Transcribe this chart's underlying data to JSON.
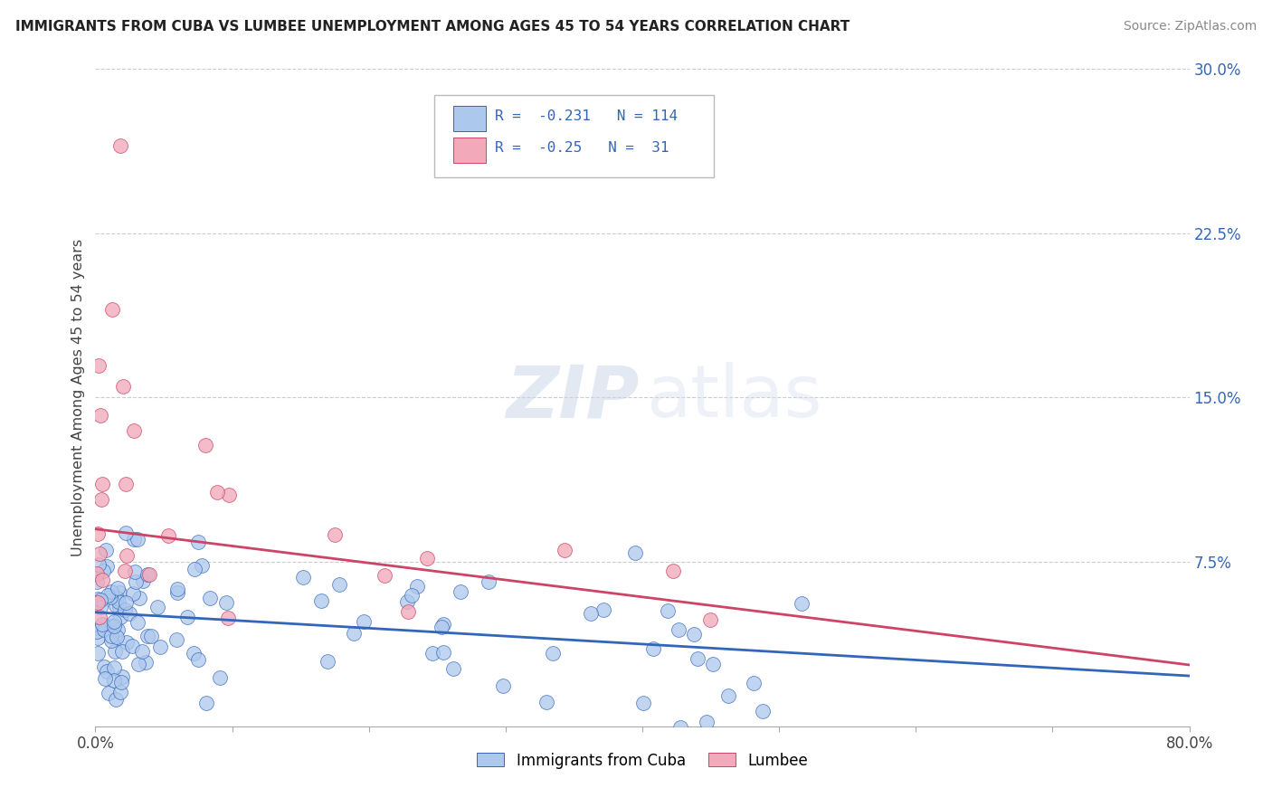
{
  "title": "IMMIGRANTS FROM CUBA VS LUMBEE UNEMPLOYMENT AMONG AGES 45 TO 54 YEARS CORRELATION CHART",
  "source": "Source: ZipAtlas.com",
  "ylabel": "Unemployment Among Ages 45 to 54 years",
  "xlim": [
    0,
    80
  ],
  "ylim": [
    0,
    30
  ],
  "xticklabels": [
    "0.0%",
    "",
    "",
    "",
    "",
    "",
    "",
    "",
    "80.0%"
  ],
  "ytick_right_labels": [
    "30.0%",
    "22.5%",
    "15.0%",
    "7.5%",
    ""
  ],
  "ytick_right_values": [
    30,
    22.5,
    15,
    7.5,
    0
  ],
  "blue_R": -0.231,
  "blue_N": 114,
  "pink_R": -0.25,
  "pink_N": 31,
  "legend_label_blue": "Immigrants from Cuba",
  "legend_label_pink": "Lumbee",
  "blue_color": "#adc8ed",
  "pink_color": "#f2aabb",
  "blue_line_color": "#3366bb",
  "pink_line_color": "#cc4466",
  "background_color": "#ffffff",
  "grid_color": "#cccccc",
  "title_color": "#222222",
  "source_color": "#888888",
  "axis_color": "#444444",
  "blue_trend_start_y": 5.2,
  "blue_trend_end_y": 2.3,
  "pink_trend_start_y": 9.0,
  "pink_trend_end_y": 2.8
}
